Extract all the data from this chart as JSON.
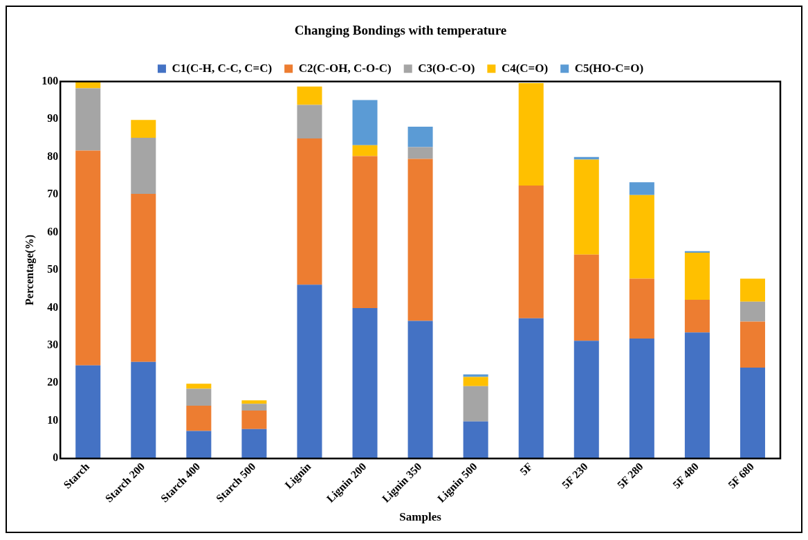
{
  "chart_data": {
    "type": "bar",
    "title": "Changing Bondings with temperature",
    "xlabel": "Samples",
    "ylabel": "Percentage(%)",
    "categories": [
      "Starch",
      "Starch 200",
      "Starch 400",
      "Starch 500",
      "Lignin",
      "Lignin 200",
      "Lignin 350",
      "Lignin 500",
      "5F",
      "5F 230",
      "5F 280",
      "5F 480",
      "5F 680"
    ],
    "series": [
      {
        "name": "C1(C-H, C-C, C=C)",
        "color": "#4472c4",
        "values": [
          24.7,
          25.6,
          7.3,
          7.8,
          46.1,
          39.9,
          36.5,
          9.8,
          37.2,
          31.2,
          31.8,
          33.4,
          24.1
        ]
      },
      {
        "name": "C2(C-OH, C-O-C)",
        "color": "#ed7d31",
        "values": [
          57,
          44.6,
          6.7,
          4.9,
          38.8,
          40.3,
          43,
          0,
          35.2,
          22.9,
          15.9,
          8.7,
          12.2
        ]
      },
      {
        "name": "C3(O-C-O)",
        "color": "#a5a5a5",
        "values": [
          16.5,
          14.9,
          4.5,
          1.8,
          8.9,
          0,
          3.1,
          9.4,
          0,
          0,
          0,
          0,
          5.3
        ]
      },
      {
        "name": "C4(C=O)",
        "color": "#ffc000",
        "values": [
          1.8,
          4.7,
          1.3,
          0.9,
          4.9,
          2.9,
          0,
          2.4,
          27.2,
          25.2,
          22.2,
          12.5,
          6.1
        ]
      },
      {
        "name": "C5(HO-C=O)",
        "color": "#5b9bd5",
        "values": [
          0,
          0,
          0,
          0,
          0,
          12,
          5.4,
          0.7,
          null,
          0.7,
          3.4,
          0.4,
          0
        ]
      }
    ],
    "stacked": true,
    "ylim": [
      0,
      100
    ],
    "yticks": [
      0,
      10,
      20,
      30,
      40,
      50,
      60,
      70,
      80,
      90,
      100
    ],
    "grid": false,
    "legend": "top"
  }
}
